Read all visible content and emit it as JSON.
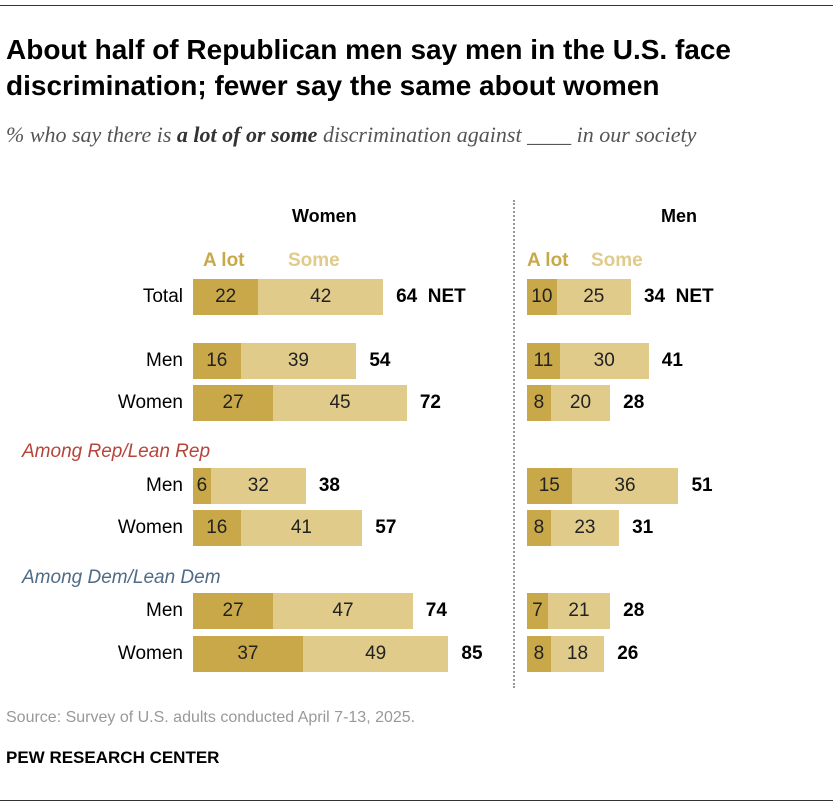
{
  "title": "About half of Republican men say men in the U.S. face discrimination; fewer say the same about women",
  "subtitle": {
    "pre": "% who say there is ",
    "bold": "a lot of or some",
    "post": " discrimination against ____ in our society"
  },
  "source": "Source: Survey of U.S. adults conducted April 7-13, 2025.",
  "brand": "PEW RESEARCH CENTER",
  "colors": {
    "a_lot": "#C9A84A",
    "some": "#E0CB8B",
    "rep": "#B5453A",
    "dem": "#4F6B85"
  },
  "chart_data": {
    "type": "bar",
    "stacked": true,
    "orientation": "horizontal",
    "legend": [
      "A lot",
      "Some"
    ],
    "net_label": "NET",
    "groups": [
      "Among Rep/Lean Rep",
      "Among Dem/Lean Dem"
    ],
    "categories": [
      "Total",
      "Men",
      "Women",
      "Men",
      "Women",
      "Men",
      "Women"
    ],
    "panels": [
      {
        "title": "Women",
        "a_lot": [
          22,
          16,
          27,
          6,
          16,
          27,
          37
        ],
        "some": [
          42,
          39,
          45,
          32,
          41,
          47,
          49
        ],
        "net": [
          64,
          54,
          72,
          38,
          57,
          74,
          85
        ]
      },
      {
        "title": "Men",
        "a_lot": [
          10,
          11,
          8,
          15,
          8,
          7,
          8
        ],
        "some": [
          25,
          30,
          20,
          36,
          23,
          21,
          18
        ],
        "net": [
          34,
          41,
          28,
          51,
          31,
          28,
          26
        ]
      }
    ]
  }
}
